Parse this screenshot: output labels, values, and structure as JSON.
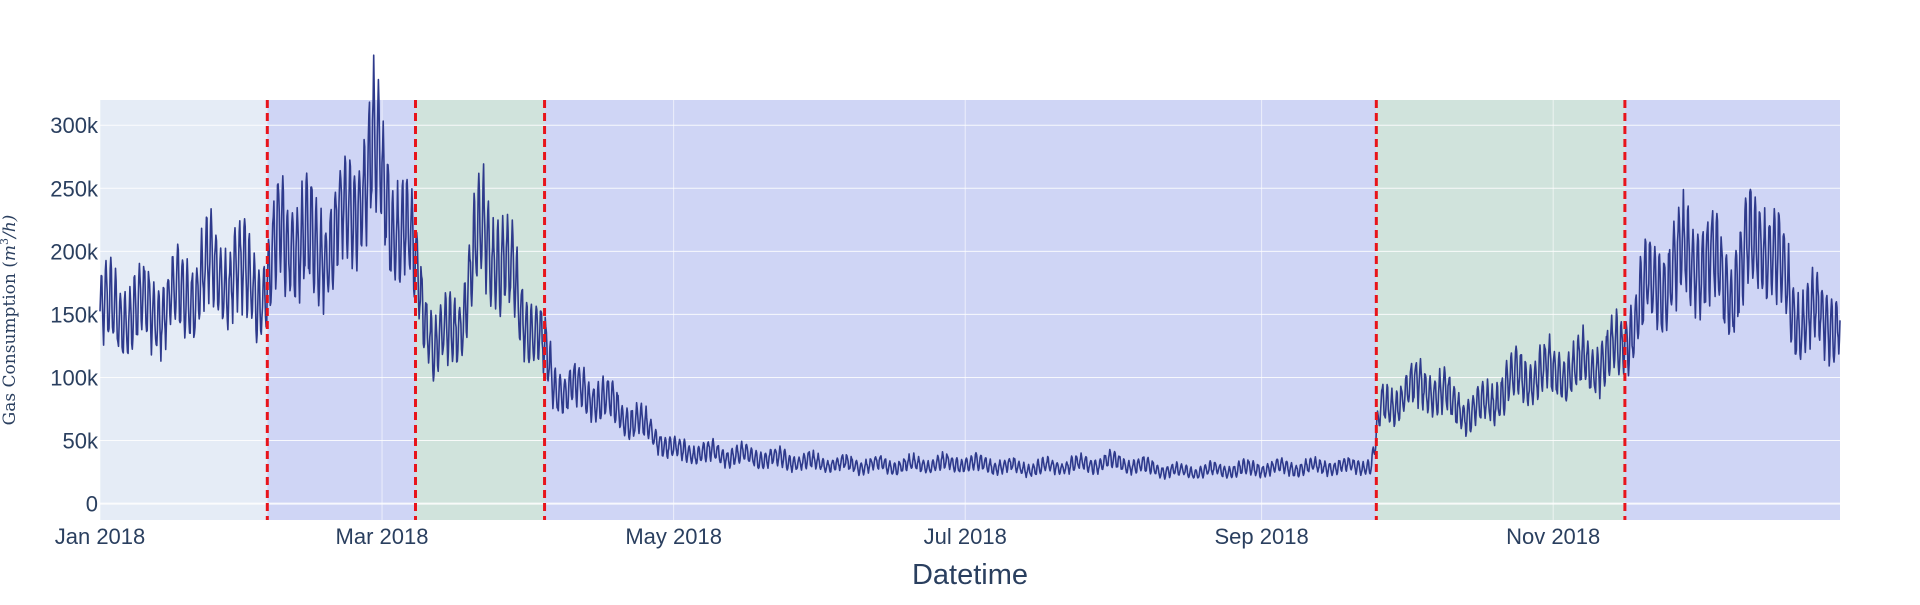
{
  "chart_data": {
    "type": "line",
    "title": "",
    "xlabel": "Datetime",
    "ylabel": "Gas Consumption (m³/h)",
    "ylabel_parts": {
      "prefix": "Gas Consumption (",
      "var": "m",
      "sup": "3",
      "suffix": "/h)"
    },
    "x_range": [
      "2018-01-01",
      "2018-12-31"
    ],
    "y_range": [
      -13000,
      320000
    ],
    "x_ticks": [
      {
        "date": "2018-01-01",
        "label": "Jan 2018"
      },
      {
        "date": "2018-03-01",
        "label": "Mar 2018"
      },
      {
        "date": "2018-05-01",
        "label": "May 2018"
      },
      {
        "date": "2018-07-01",
        "label": "Jul 2018"
      },
      {
        "date": "2018-09-01",
        "label": "Sep 2018"
      },
      {
        "date": "2018-11-01",
        "label": "Nov 2018"
      }
    ],
    "y_ticks": [
      {
        "value": 0,
        "label": "0"
      },
      {
        "value": 50000,
        "label": "50k"
      },
      {
        "value": 100000,
        "label": "100k"
      },
      {
        "value": 150000,
        "label": "150k"
      },
      {
        "value": 200000,
        "label": "200k"
      },
      {
        "value": 250000,
        "label": "250k"
      },
      {
        "value": 300000,
        "label": "300k"
      }
    ],
    "regime_changes": [
      "2018-02-05",
      "2018-03-08",
      "2018-04-04",
      "2018-09-25",
      "2018-11-16"
    ],
    "regimes": [
      {
        "start": "2018-01-01",
        "end": "2018-02-05",
        "color": "#e5ecf6"
      },
      {
        "start": "2018-02-05",
        "end": "2018-03-08",
        "color": "#cfd5f5"
      },
      {
        "start": "2018-03-08",
        "end": "2018-04-04",
        "color": "#d0e3dc"
      },
      {
        "start": "2018-04-04",
        "end": "2018-09-25",
        "color": "#cfd5f5"
      },
      {
        "start": "2018-09-25",
        "end": "2018-11-16",
        "color": "#d0e3dc"
      },
      {
        "start": "2018-11-16",
        "end": "2018-12-31",
        "color": "#cfd5f5"
      }
    ],
    "series": [
      {
        "line_color": "#2e3a8c",
        "daily_oscillation_amplitude": 0.17,
        "trend": [
          {
            "date": "2018-01-01",
            "value": 150000
          },
          {
            "date": "2018-01-15",
            "value": 155000
          },
          {
            "date": "2018-01-25",
            "value": 185000
          },
          {
            "date": "2018-02-05",
            "value": 170000
          },
          {
            "date": "2018-02-08",
            "value": 215000
          },
          {
            "date": "2018-02-15",
            "value": 200000
          },
          {
            "date": "2018-02-22",
            "value": 225000
          },
          {
            "date": "2018-02-27",
            "value": 275000
          },
          {
            "date": "2018-03-03",
            "value": 235000
          },
          {
            "date": "2018-03-08",
            "value": 190000
          },
          {
            "date": "2018-03-12",
            "value": 120000
          },
          {
            "date": "2018-03-18",
            "value": 150000
          },
          {
            "date": "2018-03-22",
            "value": 220000
          },
          {
            "date": "2018-03-28",
            "value": 175000
          },
          {
            "date": "2018-04-04",
            "value": 120000
          },
          {
            "date": "2018-04-06",
            "value": 95000
          },
          {
            "date": "2018-04-15",
            "value": 85000
          },
          {
            "date": "2018-04-25",
            "value": 60000
          },
          {
            "date": "2018-05-01",
            "value": 42000
          },
          {
            "date": "2018-05-15",
            "value": 38000
          },
          {
            "date": "2018-06-01",
            "value": 32000
          },
          {
            "date": "2018-06-15",
            "value": 30000
          },
          {
            "date": "2018-07-01",
            "value": 32000
          },
          {
            "date": "2018-07-15",
            "value": 28000
          },
          {
            "date": "2018-08-01",
            "value": 33000
          },
          {
            "date": "2018-08-15",
            "value": 25000
          },
          {
            "date": "2018-09-01",
            "value": 28000
          },
          {
            "date": "2018-09-24",
            "value": 30000
          },
          {
            "date": "2018-09-26",
            "value": 75000
          },
          {
            "date": "2018-10-05",
            "value": 95000
          },
          {
            "date": "2018-10-15",
            "value": 70000
          },
          {
            "date": "2018-10-25",
            "value": 100000
          },
          {
            "date": "2018-11-05",
            "value": 105000
          },
          {
            "date": "2018-11-15",
            "value": 120000
          },
          {
            "date": "2018-11-20",
            "value": 165000
          },
          {
            "date": "2018-12-01",
            "value": 200000
          },
          {
            "date": "2018-12-08",
            "value": 170000
          },
          {
            "date": "2018-12-15",
            "value": 215000
          },
          {
            "date": "2018-12-22",
            "value": 150000
          },
          {
            "date": "2018-12-31",
            "value": 145000
          }
        ]
      }
    ]
  }
}
